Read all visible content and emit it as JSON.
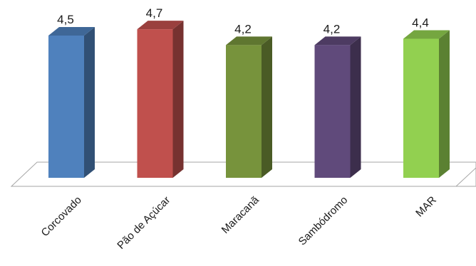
{
  "chart_data": {
    "type": "bar",
    "style": "3d-column",
    "categories": [
      "Corcovado",
      "Pão de Açúcar",
      "Maracanã",
      "Sambódromo",
      "MAR"
    ],
    "values": [
      4.5,
      4.7,
      4.2,
      4.2,
      4.4
    ],
    "value_labels": [
      "4,5",
      "4,7",
      "4,2",
      "4,2",
      "4,4"
    ],
    "title": "",
    "xlabel": "",
    "ylabel": "",
    "grid": false,
    "legend": "none",
    "colors": [
      "#4f81bd",
      "#c0504d",
      "#77933c",
      "#604a7b",
      "#92d050"
    ]
  }
}
